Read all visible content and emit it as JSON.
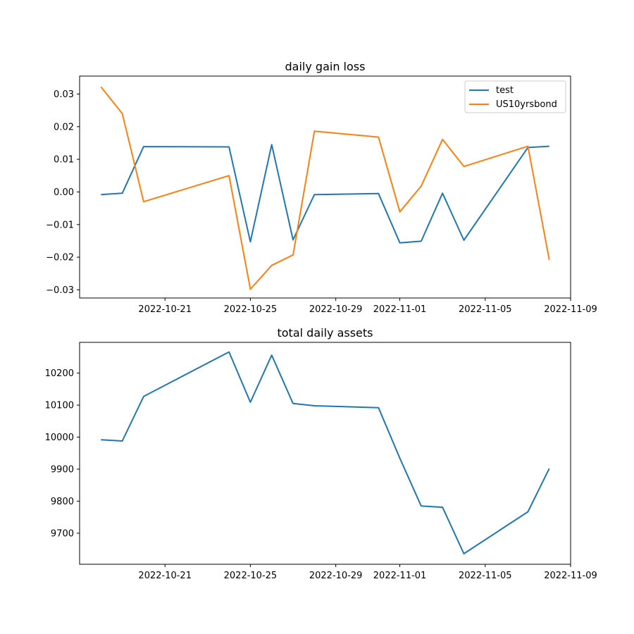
{
  "chart_data": [
    {
      "type": "line",
      "title": "daily gain loss",
      "xlabel": "",
      "ylabel": "",
      "x_ticks": [
        "2022-10-21",
        "2022-10-25",
        "2022-10-29",
        "2022-11-01",
        "2022-11-05",
        "2022-11-09"
      ],
      "y_ticks": [
        0.03,
        0.02,
        0.01,
        0.0,
        -0.01,
        -0.02,
        -0.03
      ],
      "y_tick_labels": [
        "0.03",
        "0.02",
        "0.01",
        "0.00",
        "−0.01",
        "−0.02",
        "−0.03"
      ],
      "xlim": [
        "2022-10-17",
        "2022-11-09"
      ],
      "ylim": [
        -0.0325,
        0.0355
      ],
      "legend": "top-right",
      "grid": false,
      "x": [
        "2022-10-18",
        "2022-10-19",
        "2022-10-20",
        "2022-10-24",
        "2022-10-25",
        "2022-10-26",
        "2022-10-27",
        "2022-10-28",
        "2022-10-31",
        "2022-11-01",
        "2022-11-02",
        "2022-11-03",
        "2022-11-04",
        "2022-11-07",
        "2022-11-08"
      ],
      "series": [
        {
          "name": "test",
          "color": "#1f77b4",
          "values": [
            -0.0008,
            -0.0004,
            0.0139,
            0.0138,
            -0.0153,
            0.0145,
            -0.0147,
            -0.0008,
            -0.0005,
            -0.0156,
            -0.0151,
            -0.0004,
            -0.0148,
            0.0136,
            0.014
          ]
        },
        {
          "name": "US10yrsbond",
          "color": "#ff7f0e",
          "values": [
            0.0322,
            0.024,
            -0.003,
            0.005,
            -0.0298,
            -0.0225,
            -0.0193,
            0.0186,
            0.0168,
            -0.0061,
            0.0018,
            0.0161,
            0.0078,
            0.014,
            -0.0208
          ]
        }
      ]
    },
    {
      "type": "line",
      "title": "total daily assets",
      "xlabel": "",
      "ylabel": "",
      "x_ticks": [
        "2022-10-21",
        "2022-10-25",
        "2022-10-29",
        "2022-11-01",
        "2022-11-05",
        "2022-11-09"
      ],
      "y_ticks": [
        10200,
        10100,
        10000,
        9900,
        9800,
        9700
      ],
      "y_tick_labels": [
        "10200",
        "10100",
        "10000",
        "9900",
        "9800",
        "9700"
      ],
      "xlim": [
        "2022-10-17",
        "2022-11-09"
      ],
      "ylim": [
        9603,
        10296
      ],
      "grid": false,
      "x": [
        "2022-10-18",
        "2022-10-19",
        "2022-10-20",
        "2022-10-24",
        "2022-10-25",
        "2022-10-26",
        "2022-10-27",
        "2022-10-28",
        "2022-10-31",
        "2022-11-01",
        "2022-11-02",
        "2022-11-03",
        "2022-11-04",
        "2022-11-07",
        "2022-11-08"
      ],
      "series": [
        {
          "color": "#1f77b4",
          "values": [
            9992,
            9988,
            10127,
            10266,
            10109,
            10256,
            10105,
            10098,
            10092,
            9934,
            9785,
            9781,
            9636,
            9767,
            9902
          ]
        }
      ]
    }
  ]
}
